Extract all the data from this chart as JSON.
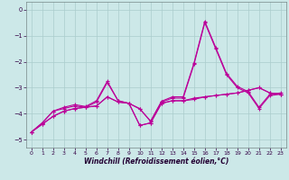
{
  "xlabel": "Windchill (Refroidissement éolien,°C)",
  "background_color": "#cce8e8",
  "grid_color": "#aacccc",
  "line_color": "#bb0099",
  "xlim": [
    -0.5,
    23.5
  ],
  "ylim": [
    -5.3,
    0.3
  ],
  "xticks": [
    0,
    1,
    2,
    3,
    4,
    5,
    6,
    7,
    8,
    9,
    10,
    11,
    12,
    13,
    14,
    15,
    16,
    17,
    18,
    19,
    20,
    21,
    22,
    23
  ],
  "yticks": [
    0,
    -1,
    -2,
    -3,
    -4,
    -5
  ],
  "series": [
    {
      "x": [
        0,
        1,
        2,
        3,
        4,
        5,
        6,
        7,
        8,
        9,
        10,
        11,
        12,
        13,
        14,
        15,
        16,
        17,
        18,
        19,
        20,
        21,
        22,
        23
      ],
      "y": [
        -4.7,
        -4.4,
        -4.1,
        -3.9,
        -3.8,
        -3.75,
        -3.7,
        -3.35,
        -3.55,
        -3.6,
        -4.45,
        -4.35,
        -3.6,
        -3.5,
        -3.5,
        -3.4,
        -3.35,
        -3.3,
        -3.25,
        -3.2,
        -3.1,
        -3.0,
        -3.2,
        -3.25
      ]
    },
    {
      "x": [
        0,
        1,
        2,
        3,
        4,
        5,
        6,
        7,
        8,
        9,
        10,
        11,
        12,
        13,
        14,
        15,
        16,
        17,
        18,
        19,
        20,
        21,
        22,
        23
      ],
      "y": [
        -4.7,
        -4.35,
        -3.9,
        -3.8,
        -3.7,
        -3.75,
        -3.55,
        -2.8,
        -3.5,
        -3.6,
        -3.8,
        -4.3,
        -3.55,
        -3.4,
        -3.4,
        -2.1,
        -0.5,
        -1.5,
        -2.5,
        -3.0,
        -3.2,
        -3.8,
        -3.3,
        -3.25
      ]
    },
    {
      "x": [
        0,
        1,
        2,
        3,
        4,
        5,
        6,
        7,
        8,
        9,
        10,
        11,
        12,
        13,
        14,
        15,
        16,
        17,
        18,
        19,
        20,
        21,
        22,
        23
      ],
      "y": [
        -4.7,
        -4.35,
        -3.9,
        -3.75,
        -3.65,
        -3.72,
        -3.5,
        -2.75,
        -3.5,
        -3.6,
        -3.82,
        -4.28,
        -3.52,
        -3.35,
        -3.35,
        -2.05,
        -0.45,
        -1.45,
        -2.45,
        -2.95,
        -3.15,
        -3.75,
        -3.25,
        -3.2
      ]
    },
    {
      "x": [
        0,
        1,
        2,
        3,
        4,
        5,
        6,
        7,
        8,
        9,
        10,
        11,
        12,
        13,
        14,
        15,
        16,
        17,
        18,
        19,
        20,
        21,
        22,
        23
      ],
      "y": [
        -4.7,
        -4.4,
        -4.1,
        -3.9,
        -3.8,
        -3.75,
        -3.7,
        -3.35,
        -3.55,
        -3.6,
        -4.45,
        -4.35,
        -3.6,
        -3.5,
        -3.5,
        -3.45,
        -3.35,
        -3.3,
        -3.25,
        -3.2,
        -3.1,
        -3.0,
        -3.2,
        -3.25
      ]
    }
  ],
  "xlabel_fontsize": 5.5,
  "tick_fontsize": 4.8,
  "linewidth": 0.8,
  "marker_size": 2.5
}
